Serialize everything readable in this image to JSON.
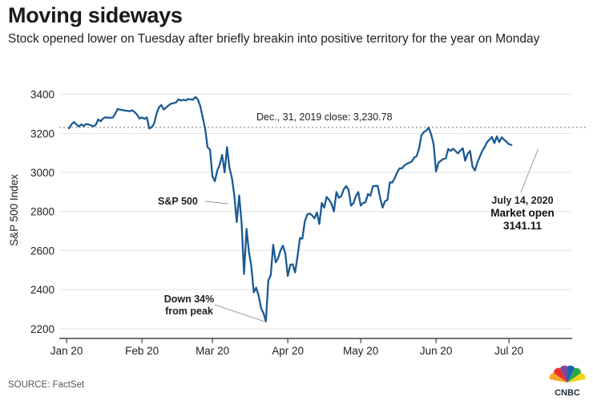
{
  "header": {
    "title": "Moving sideways",
    "subtitle": "Stock opened lower on Tuesday after briefly breakin into positive territory for the year on Monday"
  },
  "footer": {
    "source": "SOURCE: FactSet",
    "logo_text": "CNBC"
  },
  "colors": {
    "line": "#1c5a94",
    "reference": "#888888",
    "logo_dark": "#1f2d3d"
  },
  "chart_data": {
    "type": "line",
    "title": "Moving sideways",
    "ylabel": "S&P 500 Index",
    "xlabel": "",
    "ylim": [
      2150,
      3460
    ],
    "yticks": [
      2200,
      2400,
      2600,
      2800,
      3000,
      3200,
      3400
    ],
    "x_range": [
      -3,
      208
    ],
    "xticks": [
      {
        "label": "Jan 20",
        "day": 0
      },
      {
        "label": "Feb 20",
        "day": 31
      },
      {
        "label": "Mar 20",
        "day": 60
      },
      {
        "label": "Apr 20",
        "day": 91
      },
      {
        "label": "May 20",
        "day": 121
      },
      {
        "label": "Jun 20",
        "day": 152
      },
      {
        "label": "Jul 20",
        "day": 182
      }
    ],
    "reference_line": {
      "value": 3230.78,
      "label": "Dec., 31, 2019 close:  3,230.78"
    },
    "annotations": [
      {
        "id": "sp500",
        "lines": [
          "S&P 500"
        ],
        "value_day": 67,
        "value": 2840
      },
      {
        "id": "trough",
        "lines": [
          "Down 34%",
          "from peak"
        ],
        "value_day": 82,
        "value": 2237
      },
      {
        "id": "latest",
        "lines": [
          "July 14, 2020",
          "Market open",
          "3141.11"
        ],
        "value_day": 195,
        "value": 3141.11
      }
    ],
    "series": [
      {
        "name": "S&P 500",
        "x_unit": "days since Jan 1, 2020",
        "points": [
          [
            1,
            3226
          ],
          [
            2,
            3246
          ],
          [
            3,
            3258
          ],
          [
            5,
            3235
          ],
          [
            6,
            3246
          ],
          [
            7,
            3237
          ],
          [
            8,
            3248
          ],
          [
            9,
            3246
          ],
          [
            11,
            3236
          ],
          [
            12,
            3244
          ],
          [
            13,
            3271
          ],
          [
            14,
            3262
          ],
          [
            15,
            3276
          ],
          [
            16,
            3282
          ],
          [
            17,
            3280
          ],
          [
            19,
            3281
          ],
          [
            20,
            3300
          ],
          [
            21,
            3325
          ],
          [
            22,
            3322
          ],
          [
            23,
            3319
          ],
          [
            25,
            3315
          ],
          [
            26,
            3314
          ],
          [
            27,
            3318
          ],
          [
            28,
            3309
          ],
          [
            29,
            3296
          ],
          [
            30,
            3276
          ],
          [
            31,
            3282
          ],
          [
            32,
            3274
          ],
          [
            33,
            3282
          ],
          [
            34,
            3225
          ],
          [
            35,
            3232
          ],
          [
            36,
            3250
          ],
          [
            37,
            3300
          ],
          [
            38,
            3334
          ],
          [
            39,
            3345
          ],
          [
            40,
            3322
          ],
          [
            41,
            3333
          ],
          [
            42,
            3344
          ],
          [
            43,
            3352
          ],
          [
            44,
            3355
          ],
          [
            45,
            3358
          ],
          [
            46,
            3374
          ],
          [
            47,
            3368
          ],
          [
            48,
            3372
          ],
          [
            49,
            3369
          ],
          [
            50,
            3376
          ],
          [
            52,
            3372
          ],
          [
            53,
            3386
          ],
          [
            54,
            3374
          ],
          [
            55,
            3340
          ],
          [
            56,
            3280
          ],
          [
            57,
            3225
          ],
          [
            58,
            3130
          ],
          [
            59,
            3116
          ],
          [
            60,
            2980
          ],
          [
            61,
            2955
          ],
          [
            62,
            3010
          ],
          [
            63,
            3040
          ],
          [
            64,
            3090
          ],
          [
            65,
            3000
          ],
          [
            66,
            3130
          ],
          [
            67,
            3023
          ],
          [
            68,
            2972
          ],
          [
            69,
            2882
          ],
          [
            70,
            2746
          ],
          [
            71,
            2882
          ],
          [
            72,
            2740
          ],
          [
            73,
            2480
          ],
          [
            74,
            2711
          ],
          [
            75,
            2595
          ],
          [
            76,
            2520
          ],
          [
            77,
            2386
          ],
          [
            78,
            2410
          ],
          [
            79,
            2370
          ],
          [
            80,
            2304
          ],
          [
            81,
            2280
          ],
          [
            82,
            2237
          ],
          [
            83,
            2447
          ],
          [
            84,
            2475
          ],
          [
            85,
            2630
          ],
          [
            86,
            2540
          ],
          [
            87,
            2560
          ],
          [
            88,
            2600
          ],
          [
            89,
            2625
          ],
          [
            90,
            2584
          ],
          [
            91,
            2470
          ],
          [
            92,
            2526
          ],
          [
            93,
            2530
          ],
          [
            94,
            2488
          ],
          [
            95,
            2570
          ],
          [
            96,
            2664
          ],
          [
            97,
            2661
          ],
          [
            98,
            2750
          ],
          [
            99,
            2784
          ],
          [
            100,
            2790
          ],
          [
            101,
            2780
          ],
          [
            102,
            2765
          ],
          [
            103,
            2795
          ],
          [
            104,
            2736
          ],
          [
            105,
            2844
          ],
          [
            106,
            2820
          ],
          [
            107,
            2875
          ],
          [
            108,
            2860
          ],
          [
            109,
            2840
          ],
          [
            110,
            2800
          ],
          [
            111,
            2900
          ],
          [
            112,
            2870
          ],
          [
            113,
            2878
          ],
          [
            114,
            2913
          ],
          [
            115,
            2930
          ],
          [
            116,
            2912
          ],
          [
            117,
            2830
          ],
          [
            118,
            2842
          ],
          [
            119,
            2878
          ],
          [
            120,
            2900
          ],
          [
            121,
            2830
          ],
          [
            122,
            2843
          ],
          [
            123,
            2848
          ],
          [
            124,
            2890
          ],
          [
            125,
            2880
          ],
          [
            126,
            2929
          ],
          [
            127,
            2931
          ],
          [
            128,
            2931
          ],
          [
            129,
            2870
          ],
          [
            130,
            2820
          ],
          [
            131,
            2852
          ],
          [
            132,
            2860
          ],
          [
            133,
            2950
          ],
          [
            134,
            2948
          ],
          [
            135,
            2972
          ],
          [
            136,
            3000
          ],
          [
            137,
            3021
          ],
          [
            138,
            3021
          ],
          [
            139,
            3036
          ],
          [
            140,
            3044
          ],
          [
            141,
            3050
          ],
          [
            142,
            3055
          ],
          [
            143,
            3076
          ],
          [
            144,
            3083
          ],
          [
            145,
            3122
          ],
          [
            146,
            3190
          ],
          [
            147,
            3208
          ],
          [
            148,
            3214
          ],
          [
            149,
            3230
          ],
          [
            150,
            3194
          ],
          [
            151,
            3145
          ],
          [
            152,
            3005
          ],
          [
            153,
            3050
          ],
          [
            154,
            3060
          ],
          [
            155,
            3069
          ],
          [
            156,
            3072
          ],
          [
            157,
            3120
          ],
          [
            158,
            3110
          ],
          [
            159,
            3122
          ],
          [
            160,
            3110
          ],
          [
            161,
            3097
          ],
          [
            162,
            3112
          ],
          [
            163,
            3124
          ],
          [
            164,
            3060
          ],
          [
            165,
            3095
          ],
          [
            166,
            3110
          ],
          [
            167,
            3030
          ],
          [
            168,
            3010
          ],
          [
            169,
            3050
          ],
          [
            170,
            3080
          ],
          [
            171,
            3110
          ],
          [
            172,
            3130
          ],
          [
            173,
            3155
          ],
          [
            174,
            3168
          ],
          [
            175,
            3182
          ],
          [
            176,
            3150
          ],
          [
            177,
            3185
          ],
          [
            178,
            3155
          ],
          [
            179,
            3180
          ],
          [
            180,
            3167
          ],
          [
            181,
            3157
          ],
          [
            182,
            3145
          ],
          [
            183,
            3141
          ]
        ]
      }
    ]
  }
}
